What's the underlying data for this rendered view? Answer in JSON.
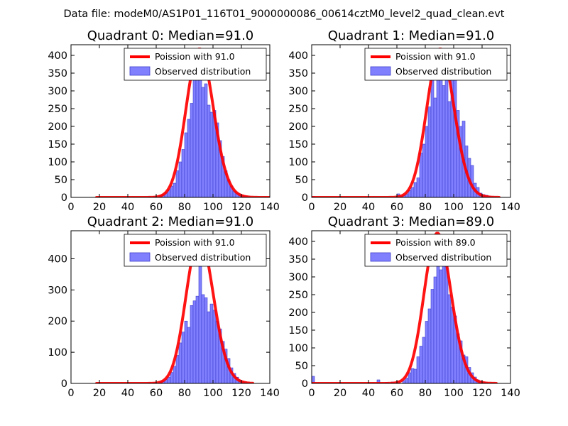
{
  "figure": {
    "suptitle": "Data file: modeM0/AS1P01_116T01_9000000086_00614cztM0_level2_quad_clean.evt",
    "colors": {
      "bar_fill": "#8080ff",
      "bar_edge": "#3d3dcc",
      "curve": "#ff0000"
    }
  },
  "chart_data": [
    {
      "type": "bar",
      "title": "Quadrant 0: Median=91.0",
      "xlim": [
        0,
        140
      ],
      "ylim": [
        0,
        430
      ],
      "xticks": [
        0,
        20,
        40,
        60,
        80,
        100,
        120,
        140
      ],
      "yticks": [
        0,
        50,
        100,
        150,
        200,
        250,
        300,
        350,
        400
      ],
      "legend": {
        "position": "top-right",
        "curve_label": "Poission with 91.0",
        "bar_label": "Observed distribution"
      },
      "bin_width": 2,
      "bins": [
        [
          18,
          1
        ],
        [
          54,
          2
        ],
        [
          58,
          3
        ],
        [
          62,
          6
        ],
        [
          64,
          8
        ],
        [
          66,
          14
        ],
        [
          68,
          22
        ],
        [
          70,
          32
        ],
        [
          72,
          40
        ],
        [
          74,
          75
        ],
        [
          76,
          100
        ],
        [
          78,
          135
        ],
        [
          80,
          182
        ],
        [
          82,
          220
        ],
        [
          84,
          265
        ],
        [
          86,
          345
        ],
        [
          88,
          360
        ],
        [
          90,
          405
        ],
        [
          92,
          310
        ],
        [
          94,
          320
        ],
        [
          96,
          260
        ],
        [
          98,
          240
        ],
        [
          100,
          245
        ],
        [
          102,
          210
        ],
        [
          104,
          160
        ],
        [
          106,
          115
        ],
        [
          108,
          75
        ],
        [
          110,
          50
        ],
        [
          112,
          32
        ],
        [
          114,
          18
        ],
        [
          116,
          12
        ],
        [
          118,
          8
        ],
        [
          120,
          5
        ],
        [
          122,
          3
        ],
        [
          124,
          2
        ]
      ],
      "poisson": {
        "mean": 91.0,
        "scale": 418,
        "x_range": [
          18,
          140
        ]
      }
    },
    {
      "type": "bar",
      "title": "Quadrant 1: Median=91.0",
      "xlim": [
        0,
        140
      ],
      "ylim": [
        0,
        430
      ],
      "xticks": [
        0,
        20,
        40,
        60,
        80,
        100,
        120,
        140
      ],
      "yticks": [
        0,
        50,
        100,
        150,
        200,
        250,
        300,
        350,
        400
      ],
      "legend": {
        "position": "top-right",
        "curve_label": "Poission with 91.0",
        "bar_label": "Observed distribution"
      },
      "bin_width": 2,
      "bins": [
        [
          0,
          3
        ],
        [
          60,
          10
        ],
        [
          62,
          4
        ],
        [
          64,
          6
        ],
        [
          66,
          10
        ],
        [
          68,
          20
        ],
        [
          70,
          28
        ],
        [
          72,
          42
        ],
        [
          74,
          55
        ],
        [
          76,
          125
        ],
        [
          78,
          150
        ],
        [
          80,
          200
        ],
        [
          82,
          255
        ],
        [
          84,
          370
        ],
        [
          86,
          280
        ],
        [
          88,
          410
        ],
        [
          90,
          400
        ],
        [
          92,
          315
        ],
        [
          94,
          345
        ],
        [
          96,
          270
        ],
        [
          98,
          355
        ],
        [
          100,
          410
        ],
        [
          102,
          245
        ],
        [
          104,
          200
        ],
        [
          106,
          215
        ],
        [
          108,
          145
        ],
        [
          110,
          110
        ],
        [
          112,
          90
        ],
        [
          114,
          40
        ],
        [
          116,
          28
        ],
        [
          118,
          12
        ],
        [
          120,
          8
        ],
        [
          122,
          6
        ],
        [
          124,
          3
        ],
        [
          126,
          2
        ],
        [
          128,
          1
        ]
      ],
      "poisson": {
        "mean": 91.0,
        "scale": 418,
        "x_range": [
          0,
          132
        ]
      }
    },
    {
      "type": "bar",
      "title": "Quadrant 2: Median=91.0",
      "xlim": [
        0,
        140
      ],
      "ylim": [
        0,
        490
      ],
      "xticks": [
        0,
        20,
        40,
        60,
        80,
        100,
        120,
        140
      ],
      "yticks": [
        0,
        100,
        200,
        300,
        400
      ],
      "legend": {
        "position": "top-right",
        "curve_label": "Poission with 91.0",
        "bar_label": "Observed distribution"
      },
      "bin_width": 2,
      "bins": [
        [
          18,
          2
        ],
        [
          54,
          2
        ],
        [
          58,
          3
        ],
        [
          62,
          5
        ],
        [
          64,
          8
        ],
        [
          66,
          12
        ],
        [
          68,
          20
        ],
        [
          70,
          35
        ],
        [
          72,
          55
        ],
        [
          74,
          90
        ],
        [
          76,
          130
        ],
        [
          78,
          165
        ],
        [
          80,
          200
        ],
        [
          82,
          180
        ],
        [
          84,
          250
        ],
        [
          86,
          265
        ],
        [
          88,
          280
        ],
        [
          90,
          400
        ],
        [
          92,
          285
        ],
        [
          94,
          275
        ],
        [
          96,
          230
        ],
        [
          98,
          255
        ],
        [
          100,
          235
        ],
        [
          102,
          200
        ],
        [
          104,
          175
        ],
        [
          106,
          135
        ],
        [
          108,
          110
        ],
        [
          110,
          80
        ],
        [
          112,
          50
        ],
        [
          114,
          32
        ],
        [
          116,
          20
        ],
        [
          118,
          10
        ],
        [
          120,
          5
        ],
        [
          122,
          3
        ],
        [
          124,
          2
        ]
      ],
      "poisson": {
        "mean": 91.0,
        "scale": 470,
        "x_range": [
          18,
          128
        ]
      }
    },
    {
      "type": "bar",
      "title": "Quadrant 3: Median=89.0",
      "xlim": [
        0,
        140
      ],
      "ylim": [
        0,
        430
      ],
      "xticks": [
        0,
        20,
        40,
        60,
        80,
        100,
        120,
        140
      ],
      "yticks": [
        0,
        50,
        100,
        150,
        200,
        250,
        300,
        350,
        400
      ],
      "legend": {
        "position": "top-right",
        "curve_label": "Poission with 89.0",
        "bar_label": "Observed distribution"
      },
      "bin_width": 2,
      "bins": [
        [
          0,
          20
        ],
        [
          46,
          10
        ],
        [
          52,
          3
        ],
        [
          56,
          4
        ],
        [
          60,
          5
        ],
        [
          64,
          8
        ],
        [
          66,
          15
        ],
        [
          68,
          30
        ],
        [
          70,
          42
        ],
        [
          72,
          40
        ],
        [
          74,
          75
        ],
        [
          76,
          105
        ],
        [
          78,
          130
        ],
        [
          80,
          175
        ],
        [
          82,
          210
        ],
        [
          84,
          265
        ],
        [
          86,
          300
        ],
        [
          88,
          360
        ],
        [
          90,
          320
        ],
        [
          92,
          345
        ],
        [
          94,
          395
        ],
        [
          96,
          250
        ],
        [
          98,
          215
        ],
        [
          100,
          190
        ],
        [
          102,
          140
        ],
        [
          104,
          120
        ],
        [
          106,
          80
        ],
        [
          108,
          75
        ],
        [
          110,
          45
        ],
        [
          112,
          30
        ],
        [
          114,
          18
        ],
        [
          116,
          10
        ],
        [
          118,
          6
        ],
        [
          120,
          3
        ],
        [
          122,
          2
        ],
        [
          126,
          1
        ]
      ],
      "poisson": {
        "mean": 89.0,
        "scale": 423,
        "x_range": [
          0,
          130
        ]
      }
    }
  ]
}
